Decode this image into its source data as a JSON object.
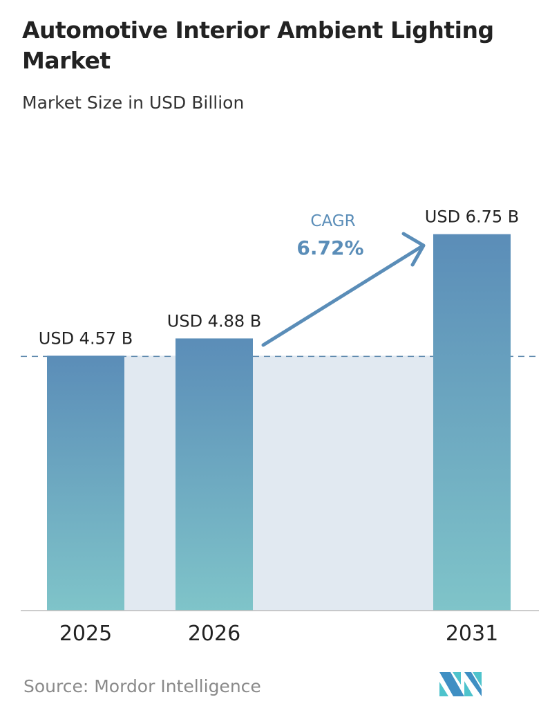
{
  "title": "Automotive Interior Ambient Lighting Market",
  "subtitle": "Market Size in USD Billion",
  "source": "Source:  Mordor Intelligence",
  "colors": {
    "bar_top": "#5b8db8",
    "bar_bottom": "#7fc4c9",
    "shade": "#e1e9f1",
    "cagr": "#5a8db8",
    "text": "#222222"
  },
  "chart_data": {
    "type": "bar",
    "categories": [
      "2025",
      "2026",
      "2031"
    ],
    "values": [
      4.57,
      4.88,
      6.75
    ],
    "data_labels": [
      "USD 4.57 B",
      "USD 4.88 B",
      "USD 6.75 B"
    ],
    "ylim": [
      0,
      7.5
    ],
    "grid": false,
    "annotation": {
      "label": "CAGR",
      "value": "6.72%"
    }
  }
}
